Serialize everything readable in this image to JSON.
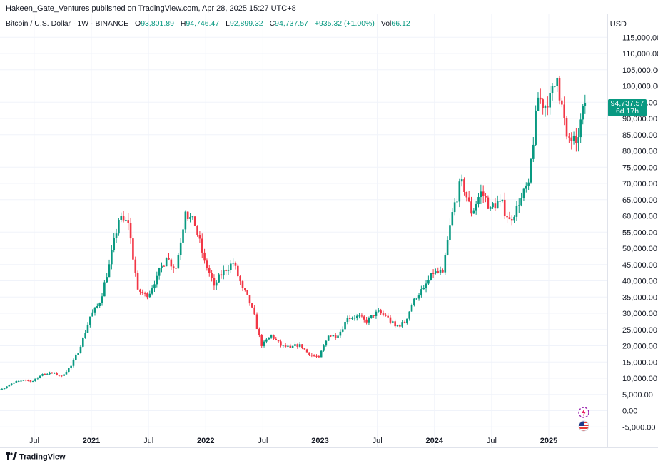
{
  "header": {
    "publisher": "Hakeen_Gate_Ventures published on TradingView.com, Apr 28, 2025 15:27 UTC+8"
  },
  "symbol": {
    "name": "Bitcoin / U.S. Dollar · 1W · BINANCE",
    "open_label": "O",
    "open": "93,801.89",
    "high_label": "H",
    "high": "94,746.47",
    "low_label": "L",
    "low": "92,899.32",
    "close_label": "C",
    "close": "94,737.57",
    "change": "+935.32 (+1.00%)",
    "vol_label": "Vol",
    "vol": "66.12"
  },
  "price_axis": {
    "currency": "USD"
  },
  "last_price": {
    "price": "94,737.57",
    "countdown": "6d 17h"
  },
  "branding": {
    "logo": "TradingView"
  },
  "colors": {
    "up": "#089981",
    "down": "#f23645",
    "grid": "#f0f3fa",
    "axis": "#e0e3eb"
  },
  "icons": [
    "lightning-icon",
    "us-flag-icon",
    "tradingview-logo-icon"
  ],
  "chart_data": {
    "type": "candlestick",
    "title": "Bitcoin / U.S. Dollar · 1W · BINANCE",
    "ylim": [
      -7500,
      117500
    ],
    "y_ticks": [
      115000,
      110000,
      105000,
      100000,
      95000,
      90000,
      85000,
      80000,
      75000,
      70000,
      65000,
      60000,
      55000,
      50000,
      45000,
      40000,
      35000,
      30000,
      25000,
      20000,
      15000,
      10000,
      5000,
      0,
      -5000
    ],
    "x_ticks": [
      {
        "label": "Jul",
        "date": "2020-07"
      },
      {
        "label": "2021",
        "date": "2021-01"
      },
      {
        "label": "Jul",
        "date": "2021-07"
      },
      {
        "label": "2022",
        "date": "2022-01"
      },
      {
        "label": "Jul",
        "date": "2022-07"
      },
      {
        "label": "2023",
        "date": "2023-01"
      },
      {
        "label": "Jul",
        "date": "2023-07"
      },
      {
        "label": "2024",
        "date": "2024-01"
      },
      {
        "label": "Jul",
        "date": "2024-07"
      },
      {
        "label": "2025",
        "date": "2025-01"
      }
    ],
    "x_range": [
      "2020-03",
      "2025-06"
    ],
    "last_price_line": 94737.57,
    "series": [
      {
        "date": "2020-03",
        "o": 6500,
        "c": 6900
      },
      {
        "date": "2020-04",
        "o": 6900,
        "c": 8700
      },
      {
        "date": "2020-05",
        "o": 8700,
        "c": 9500
      },
      {
        "date": "2020-06",
        "o": 9500,
        "c": 9100
      },
      {
        "date": "2020-07",
        "o": 9100,
        "c": 11300
      },
      {
        "date": "2020-08",
        "o": 11300,
        "c": 11600
      },
      {
        "date": "2020-09",
        "o": 11600,
        "c": 10700
      },
      {
        "date": "2020-10",
        "o": 10700,
        "c": 13800
      },
      {
        "date": "2020-11",
        "o": 13800,
        "c": 19700
      },
      {
        "date": "2020-12",
        "o": 19700,
        "c": 29000
      },
      {
        "date": "2021-01",
        "o": 29000,
        "c": 33100
      },
      {
        "date": "2021-02",
        "o": 33100,
        "c": 45100
      },
      {
        "date": "2021-03",
        "o": 45100,
        "c": 58800
      },
      {
        "date": "2021-04",
        "o": 58800,
        "c": 57700
      },
      {
        "date": "2021-05",
        "o": 57700,
        "c": 37300
      },
      {
        "date": "2021-06",
        "o": 37300,
        "c": 35000
      },
      {
        "date": "2021-07",
        "o": 35000,
        "c": 41500
      },
      {
        "date": "2021-08",
        "o": 41500,
        "c": 47100
      },
      {
        "date": "2021-09",
        "o": 47100,
        "c": 43800
      },
      {
        "date": "2021-10",
        "o": 43800,
        "c": 61300
      },
      {
        "date": "2021-11",
        "o": 61300,
        "c": 57000
      },
      {
        "date": "2021-12",
        "o": 57000,
        "c": 46200
      },
      {
        "date": "2022-01",
        "o": 46200,
        "c": 38500
      },
      {
        "date": "2022-02",
        "o": 38500,
        "c": 43200
      },
      {
        "date": "2022-03",
        "o": 43200,
        "c": 45500
      },
      {
        "date": "2022-04",
        "o": 45500,
        "c": 37700
      },
      {
        "date": "2022-05",
        "o": 37700,
        "c": 31800
      },
      {
        "date": "2022-06",
        "o": 31800,
        "c": 19900
      },
      {
        "date": "2022-07",
        "o": 19900,
        "c": 23300
      },
      {
        "date": "2022-08",
        "o": 23300,
        "c": 20000
      },
      {
        "date": "2022-09",
        "o": 20000,
        "c": 19400
      },
      {
        "date": "2022-10",
        "o": 19400,
        "c": 20500
      },
      {
        "date": "2022-11",
        "o": 20500,
        "c": 17200
      },
      {
        "date": "2022-12",
        "o": 17200,
        "c": 16500
      },
      {
        "date": "2023-01",
        "o": 16500,
        "c": 23100
      },
      {
        "date": "2023-02",
        "o": 23100,
        "c": 23100
      },
      {
        "date": "2023-03",
        "o": 23100,
        "c": 28500
      },
      {
        "date": "2023-04",
        "o": 28500,
        "c": 29200
      },
      {
        "date": "2023-05",
        "o": 29200,
        "c": 27200
      },
      {
        "date": "2023-06",
        "o": 27200,
        "c": 30500
      },
      {
        "date": "2023-07",
        "o": 30500,
        "c": 29200
      },
      {
        "date": "2023-08",
        "o": 29200,
        "c": 26000
      },
      {
        "date": "2023-09",
        "o": 26000,
        "c": 27000
      },
      {
        "date": "2023-10",
        "o": 27000,
        "c": 34500
      },
      {
        "date": "2023-11",
        "o": 34500,
        "c": 37700
      },
      {
        "date": "2023-12",
        "o": 37700,
        "c": 42300
      },
      {
        "date": "2024-01",
        "o": 42300,
        "c": 42600
      },
      {
        "date": "2024-02",
        "o": 42600,
        "c": 61200
      },
      {
        "date": "2024-03",
        "o": 61200,
        "c": 71300
      },
      {
        "date": "2024-04",
        "o": 71300,
        "c": 60700
      },
      {
        "date": "2024-05",
        "o": 60700,
        "c": 67500
      },
      {
        "date": "2024-06",
        "o": 67500,
        "c": 62700
      },
      {
        "date": "2024-07",
        "o": 62700,
        "c": 64600
      },
      {
        "date": "2024-08",
        "o": 64600,
        "c": 59000
      },
      {
        "date": "2024-09",
        "o": 59000,
        "c": 63300
      },
      {
        "date": "2024-10",
        "o": 63300,
        "c": 70300
      },
      {
        "date": "2024-11",
        "o": 70300,
        "c": 96400
      },
      {
        "date": "2024-12",
        "o": 96400,
        "c": 93400
      },
      {
        "date": "2025-01",
        "o": 93400,
        "c": 102400
      },
      {
        "date": "2025-02",
        "o": 102400,
        "c": 84400
      },
      {
        "date": "2025-03",
        "o": 84400,
        "c": 82500
      },
      {
        "date": "2025-04",
        "o": 82500,
        "c": 94737.57
      }
    ]
  }
}
